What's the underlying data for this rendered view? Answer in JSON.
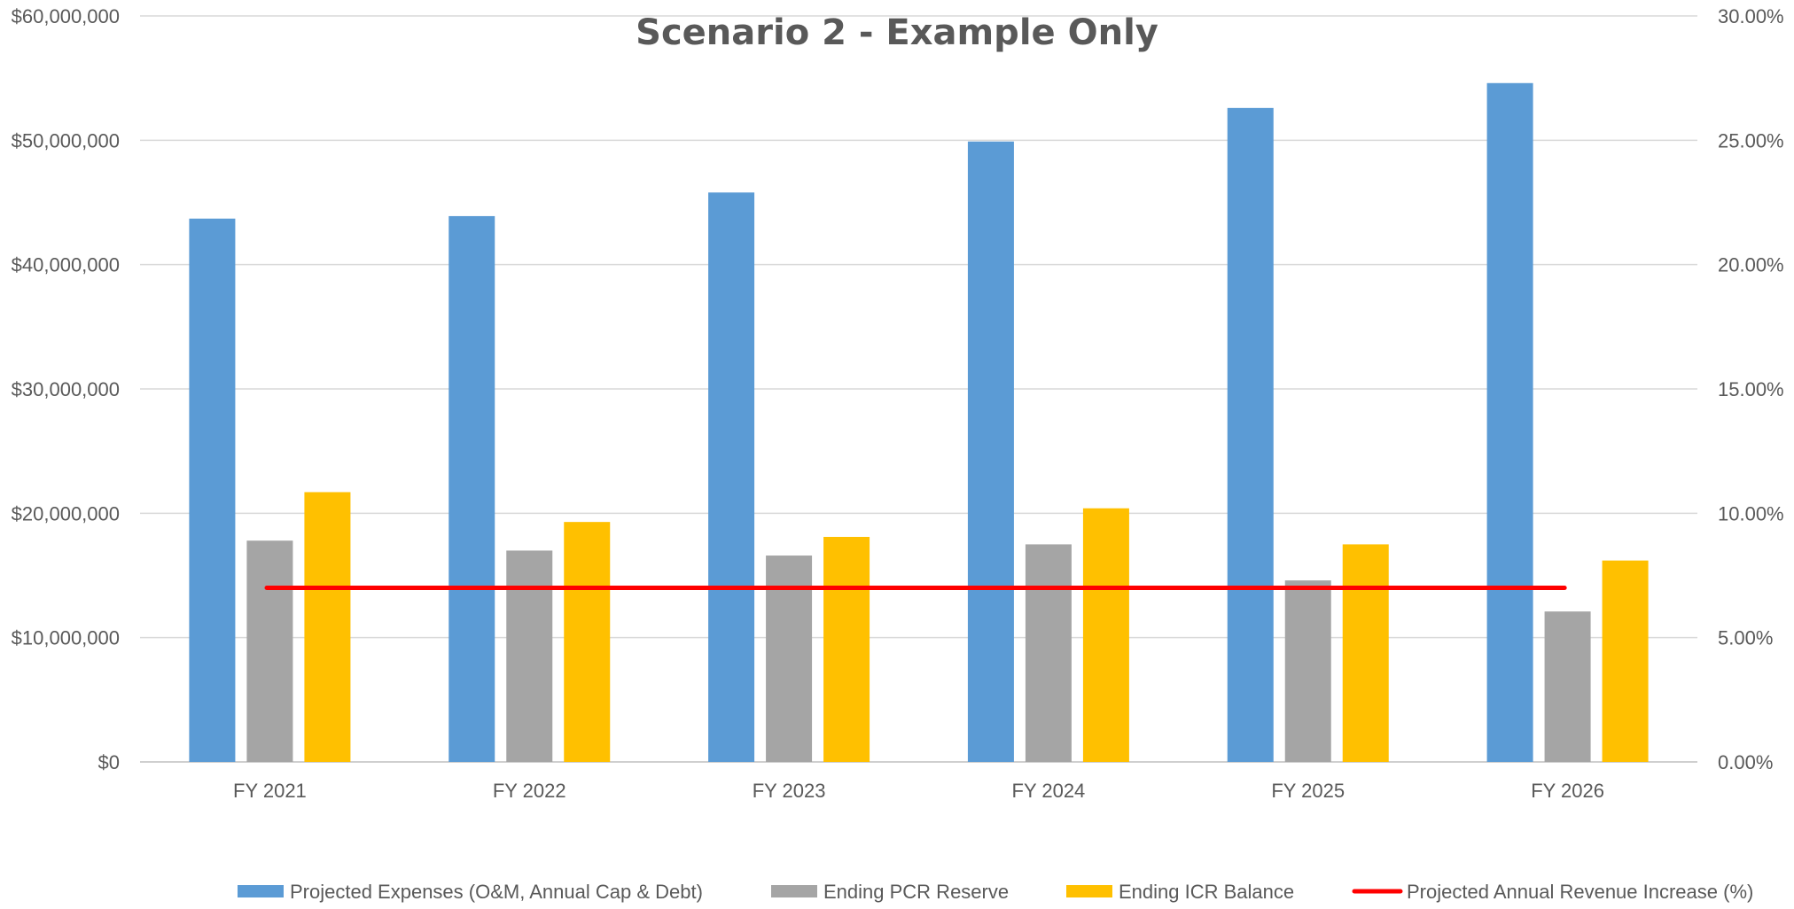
{
  "chart_data": {
    "type": "bar",
    "title": "Scenario 2 - Example Only",
    "categories": [
      "FY 2021",
      "FY 2022",
      "FY 2023",
      "FY 2024",
      "FY 2025",
      "FY 2026"
    ],
    "series": [
      {
        "name": "Projected Expenses (O&M, Annual Cap & Debt)",
        "type": "bar",
        "axis": "left",
        "color": "#5B9BD5",
        "values": [
          43700000,
          43900000,
          45800000,
          49900000,
          52600000,
          54600000
        ]
      },
      {
        "name": "Ending PCR Reserve",
        "type": "bar",
        "axis": "left",
        "color": "#A5A5A5",
        "values": [
          17800000,
          17000000,
          16600000,
          17500000,
          14600000,
          12100000
        ]
      },
      {
        "name": "Ending ICR Balance",
        "type": "bar",
        "axis": "left",
        "color": "#FFC000",
        "values": [
          21700000,
          19300000,
          18100000,
          20400000,
          17500000,
          16200000
        ]
      },
      {
        "name": "Projected Annual Revenue Increase (%)",
        "type": "line",
        "axis": "right",
        "color": "#FF0000",
        "values": [
          7.0,
          7.0,
          7.0,
          7.0,
          7.0,
          7.0
        ]
      }
    ],
    "left_axis": {
      "ylim": [
        0,
        60000000
      ],
      "ticks": [
        0,
        10000000,
        20000000,
        30000000,
        40000000,
        50000000,
        60000000
      ],
      "tick_labels": [
        "$0",
        "$10,000,000",
        "$20,000,000",
        "$30,000,000",
        "$40,000,000",
        "$50,000,000",
        "$60,000,000"
      ]
    },
    "right_axis": {
      "ylim": [
        0,
        30
      ],
      "ticks": [
        0,
        5,
        10,
        15,
        20,
        25,
        30
      ],
      "tick_labels": [
        "0.00%",
        "5.00%",
        "10.00%",
        "15.00%",
        "20.00%",
        "25.00%",
        "30.00%"
      ]
    },
    "grid": true,
    "legend_position": "bottom"
  }
}
